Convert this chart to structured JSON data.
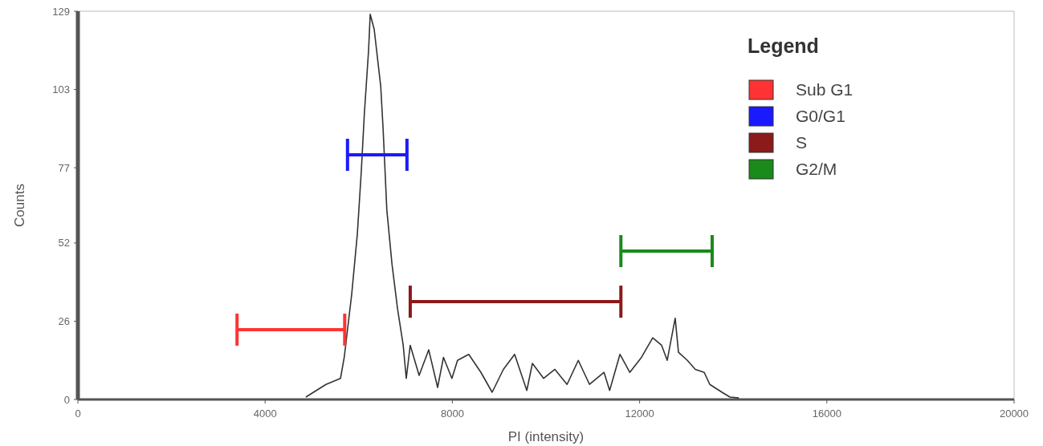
{
  "chart_data": {
    "type": "line",
    "xlabel": "PI (intensity)",
    "ylabel": "Counts",
    "legend_title": "Legend",
    "legend": "top right",
    "grid": false,
    "xlim": [
      0,
      20000
    ],
    "xticks": [
      0,
      4000,
      8000,
      12000,
      16000,
      20000
    ],
    "ylim": [
      0,
      129
    ],
    "yticks": [
      0,
      26,
      52,
      77,
      103,
      129
    ],
    "series": [
      {
        "color": "#333333",
        "marker": "none",
        "x": [
          4870,
          5300,
          5610,
          5690,
          5850,
          5970,
          6055,
          6120,
          6210,
          6245,
          6330,
          6470,
          6520,
          6600,
          6710,
          6830,
          6950,
          7015,
          7100,
          7290,
          7495,
          7685,
          7810,
          7990,
          8110,
          8350,
          8610,
          8850,
          9090,
          9330,
          9590,
          9710,
          9950,
          10190,
          10450,
          10690,
          10930,
          11240,
          11360,
          11580,
          11790,
          12040,
          12280,
          12470,
          12590,
          12760,
          12830,
          13020,
          13190,
          13380,
          13500,
          13760,
          13930,
          14120
        ],
        "values": [
          0.8,
          5,
          7,
          14,
          35,
          55,
          76,
          95,
          116,
          128,
          123,
          104,
          90,
          63,
          45,
          30,
          18,
          7,
          18,
          8,
          16.5,
          4,
          14,
          7,
          13,
          15,
          9,
          2.4,
          10,
          15,
          3,
          12,
          7,
          10,
          5,
          13,
          5,
          9,
          3,
          15,
          9,
          14,
          20.5,
          18,
          13,
          27,
          15.7,
          13,
          10,
          9,
          5,
          2.4,
          0.8,
          0.5
        ]
      },
      {
        "type": "line",
        "name": "Sub G1",
        "color": "#ff3333",
        "x": [
          3400,
          5700
        ],
        "values": [
          23.2,
          23.2
        ]
      },
      {
        "type": "line",
        "name": "G0/G1",
        "color": "#1a1aff",
        "x": [
          5760,
          7030
        ],
        "values": [
          81.3,
          81.3
        ]
      },
      {
        "type": "line",
        "name": "S",
        "color": "#8b1a1a",
        "x": [
          7100,
          11600
        ],
        "values": [
          32.5,
          32.5
        ]
      },
      {
        "type": "line",
        "name": "G2/M",
        "color": "#1a8a1a",
        "x": [
          11600,
          13550
        ],
        "values": [
          49.3,
          49.3
        ]
      }
    ]
  }
}
